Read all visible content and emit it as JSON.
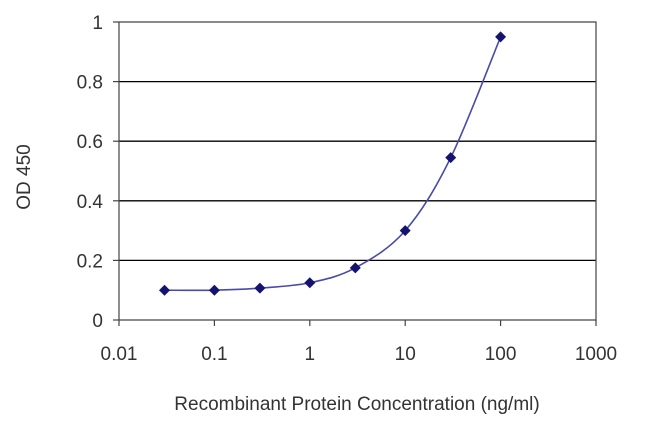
{
  "chart_data": {
    "type": "scatter",
    "title": "",
    "xlabel": "Recombinant Protein Concentration (ng/ml)",
    "ylabel": "OD 450",
    "x_scale": "log",
    "xlim": [
      0.01,
      1000
    ],
    "ylim": [
      0,
      1
    ],
    "x_ticks": [
      "0.01",
      "0.1",
      "1",
      "10",
      "100",
      "1000"
    ],
    "x_tick_values": [
      0.01,
      0.1,
      1,
      10,
      100,
      1000
    ],
    "y_ticks": [
      "0",
      "0.2",
      "0.4",
      "0.6",
      "0.8",
      "1"
    ],
    "y_tick_values": [
      0,
      0.2,
      0.4,
      0.6,
      0.8,
      1
    ],
    "grid": "horizontal",
    "legend": "none",
    "series": [
      {
        "x": [
          0.03,
          0.1,
          0.3,
          1,
          3,
          10,
          30,
          100
        ],
        "y": [
          0.1,
          0.1,
          0.107,
          0.125,
          0.175,
          0.3,
          0.545,
          0.95
        ],
        "color": "#141470",
        "line_color": "#4a4aa8",
        "marker": "diamond",
        "curve": "smooth"
      }
    ]
  }
}
